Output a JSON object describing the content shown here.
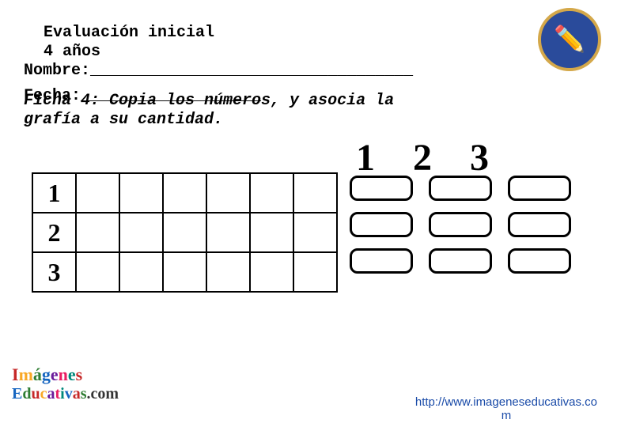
{
  "header": {
    "line1": "Evaluación inicial",
    "line2": "4 años"
  },
  "nombre_label": "Nombre:__________________________________",
  "fecha_label": "Fecha:___________________",
  "ficha_text_1": "Ficha 4: Copia los números, y asocia la",
  "ficha_text_2": "grafía a su cantidad.",
  "big_numbers": [
    "1",
    "2",
    "3"
  ],
  "left_grid": {
    "rows": 3,
    "cols": 7,
    "first_col": [
      "1",
      "2",
      "3"
    ]
  },
  "right_boxes": {
    "cols": 3,
    "rows_per_col": 3,
    "box_border_color": "#000000",
    "box_radius": 10
  },
  "footer_logo": {
    "text1": "Imágenes",
    "text2": "Educativas.com",
    "colors": [
      "#c62828",
      "#f9a825",
      "#2e7d32",
      "#1565c0",
      "#6a1b9a",
      "#e91e63",
      "#00897b",
      "#ff5722"
    ]
  },
  "footer_url": "http://www.imageneseducativas.co",
  "footer_url_2": "m",
  "colors": {
    "background": "#ffffff",
    "text": "#000000",
    "link": "#1a4ba8",
    "badge_bg": "#2a4b9b",
    "badge_border": "#d4a84a"
  }
}
